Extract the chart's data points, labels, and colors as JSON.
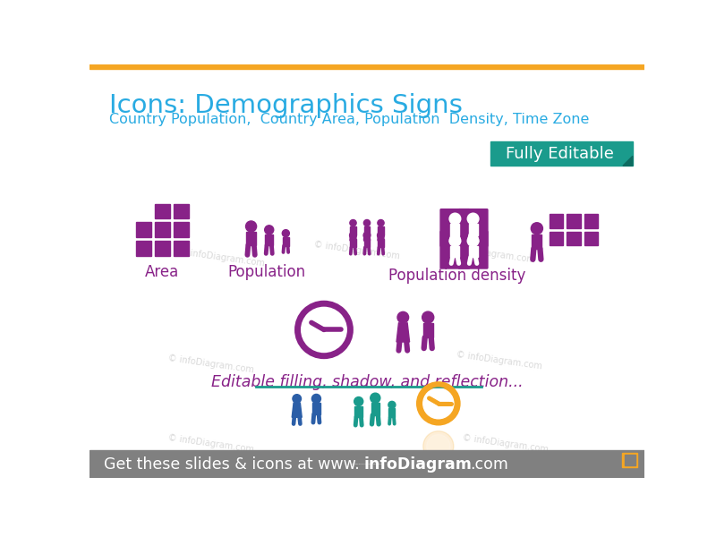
{
  "title": "Icons: Demographics Signs",
  "subtitle": "Country Population,  Country Area, Population  Density, Time Zone",
  "top_bar_color": "#F5A623",
  "title_color": "#29ABE2",
  "subtitle_color": "#29ABE2",
  "bg_color": "#FFFFFF",
  "banner_color": "#1A9B8C",
  "banner_shadow_color": "#0D6B60",
  "banner_text": "Fully Editable",
  "banner_text_color": "#FFFFFF",
  "footer_bg_color": "#808080",
  "footer_text_color": "#FFFFFF",
  "footer_orange_color": "#F5A623",
  "icon_purple": "#882288",
  "icon_teal": "#1A9B8C",
  "icon_blue": "#2B5EA7",
  "icon_orange": "#F5A623",
  "watermark_color": "#BBBBBB",
  "watermark_text": "© infoDiagram.com",
  "label_area": "Area",
  "label_population": "Population",
  "label_pop_density": "Population density",
  "label_editable": "Editable filling, shadow, and reflection..."
}
